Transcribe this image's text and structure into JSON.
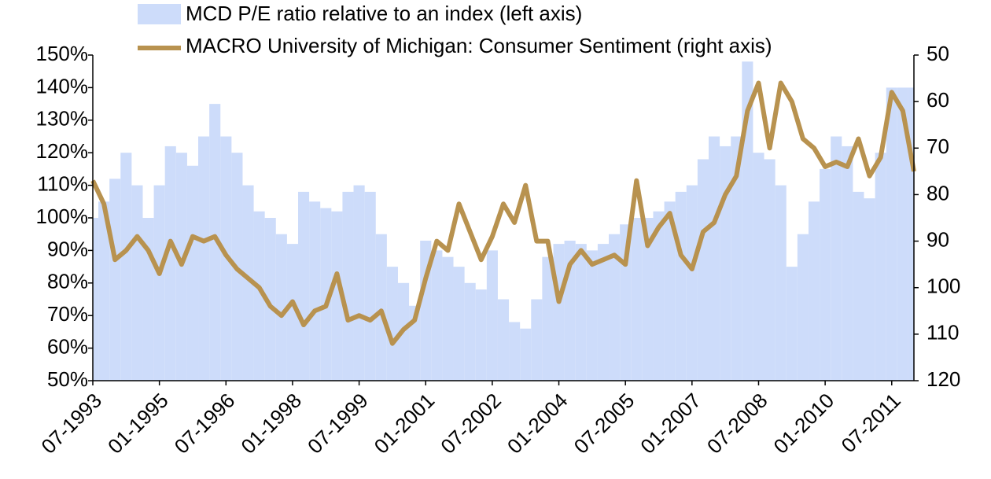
{
  "chart_data": {
    "type": "bar+line",
    "categories": [
      "07-1993",
      null,
      null,
      null,
      null,
      null,
      "01-1995",
      null,
      null,
      null,
      null,
      null,
      "07-1996",
      null,
      null,
      null,
      null,
      null,
      "01-1998",
      null,
      null,
      null,
      null,
      null,
      "07-1999",
      null,
      null,
      null,
      null,
      null,
      "01-2001",
      null,
      null,
      null,
      null,
      null,
      "07-2002",
      null,
      null,
      null,
      null,
      null,
      "01-2004",
      null,
      null,
      null,
      null,
      null,
      "07-2005",
      null,
      null,
      null,
      null,
      null,
      "01-2007",
      null,
      null,
      null,
      null,
      null,
      "07-2008",
      null,
      null,
      null,
      null,
      null,
      "01-2010",
      null,
      null,
      null,
      null,
      null,
      "07-2011",
      null,
      null
    ],
    "series": [
      {
        "name": "MCD P/E ratio relative to an index (left axis)",
        "color": "#cddcfa",
        "axis": "y",
        "values": [
          100,
          105,
          112,
          120,
          110,
          100,
          110,
          122,
          120,
          116,
          125,
          135,
          125,
          120,
          110,
          102,
          100,
          95,
          92,
          108,
          105,
          103,
          102,
          108,
          110,
          108,
          95,
          85,
          80,
          73,
          93,
          90,
          88,
          85,
          80,
          78,
          90,
          75,
          68,
          66,
          75,
          88,
          92,
          93,
          92,
          90,
          92,
          95,
          98,
          100,
          100,
          102,
          105,
          108,
          110,
          118,
          125,
          122,
          125,
          148,
          120,
          118,
          110,
          85,
          95,
          105,
          115,
          125,
          122,
          108,
          106,
          120,
          140,
          140,
          140
        ]
      },
      {
        "name": "MACRO University of Michigan: Consumer Sentiment (right axis)",
        "color": "#b8924f",
        "axis": "y2",
        "values": [
          77,
          82,
          94,
          92,
          89,
          92,
          97,
          90,
          95,
          89,
          90,
          89,
          93,
          96,
          98,
          100,
          104,
          106,
          103,
          108,
          105,
          104,
          97,
          107,
          106,
          107,
          105,
          112,
          109,
          107,
          98,
          90,
          92,
          82,
          88,
          94,
          89,
          82,
          86,
          78,
          90,
          90,
          103,
          95,
          92,
          95,
          94,
          93,
          95,
          77,
          91,
          87,
          84,
          93,
          96,
          88,
          86,
          80,
          76,
          62,
          56,
          70,
          56,
          60,
          68,
          70,
          74,
          73,
          74,
          68,
          76,
          72,
          58,
          62,
          75
        ]
      }
    ],
    "ylim": [
      50,
      150
    ],
    "yticks": [
      {
        "value": 50,
        "label": "50%"
      },
      {
        "value": 60,
        "label": "60%"
      },
      {
        "value": 70,
        "label": "70%"
      },
      {
        "value": 80,
        "label": "80%"
      },
      {
        "value": 90,
        "label": "90%"
      },
      {
        "value": 100,
        "label": "100%"
      },
      {
        "value": 110,
        "label": "110%"
      },
      {
        "value": 120,
        "label": "120%"
      },
      {
        "value": 130,
        "label": "130%"
      },
      {
        "value": 140,
        "label": "140%"
      },
      {
        "value": 150,
        "label": "150%"
      }
    ],
    "y2lim": [
      50,
      120
    ],
    "y2_inverted": true,
    "y2ticks": [
      50,
      60,
      70,
      80,
      90,
      100,
      110,
      120
    ]
  }
}
